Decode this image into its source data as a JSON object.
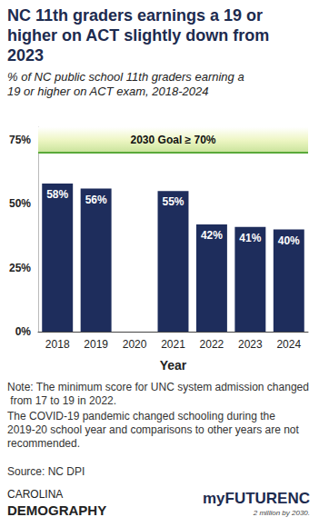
{
  "chart_data": {
    "type": "bar",
    "title": "NC 11th graders earnings a 19 or higher on ACT slightly down from 2023",
    "subtitle": "% of NC public school 11th graders earning a 19 or higher on ACT exam, 2018-2024",
    "x_label": "Year",
    "categories": [
      "2018",
      "2019",
      "2020",
      "2021",
      "2022",
      "2023",
      "2024"
    ],
    "values": [
      58,
      56,
      null,
      55,
      42,
      41,
      40
    ],
    "value_labels": [
      "58%",
      "56%",
      null,
      "55%",
      "42%",
      "41%",
      "40%"
    ],
    "color": "#1e2d5c",
    "ylim": [
      0,
      80
    ],
    "yticks": [
      {
        "value": 0,
        "label": "0%"
      },
      {
        "value": 25,
        "label": "25%"
      },
      {
        "value": 50,
        "label": "50%"
      },
      {
        "value": 75,
        "label": "75%"
      }
    ],
    "grid": false,
    "data_labels": true,
    "goal": {
      "value": 70,
      "label": "2030 Goal ≥ 70%"
    },
    "notes": [
      "Note: The minimum score for UNC system admission changed from 17 to 19 in 2022.",
      "The COVID-19 pandemic changed schooling during the 2019-20 school year and comparisons to other years are not recommended."
    ],
    "source": "Source: NC DPI"
  },
  "logos": {
    "left": [
      "CAROLINA",
      "DEMOGRAPHY"
    ],
    "right": "myFUTURENC",
    "right_tagline": "2 million by 2030."
  }
}
